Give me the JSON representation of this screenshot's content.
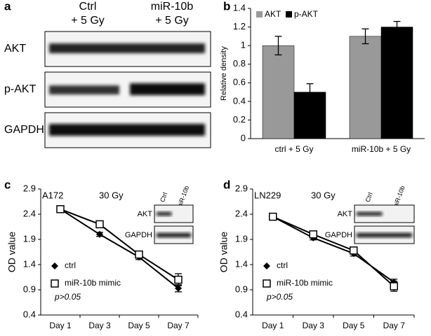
{
  "panels": [
    "a",
    "b",
    "c",
    "d"
  ],
  "blot": {
    "columns": [
      [
        "Ctrl",
        "+ 5 Gy"
      ],
      [
        "miR-10b",
        "+ 5 Gy"
      ]
    ],
    "rows": [
      "AKT",
      "p-AKT",
      "GAPDH"
    ]
  },
  "chart_data": [
    {
      "type": "bar",
      "y_label": "Relative density",
      "categories": [
        "ctrl + 5 Gy",
        "miR-10b + 5 Gy"
      ],
      "series": [
        {
          "name": "AKT",
          "color": "#999999",
          "values": [
            1,
            1.1
          ],
          "errors": [
            0.1,
            0.08
          ]
        },
        {
          "name": "p-AKT",
          "color": "#000000",
          "values": [
            0.5,
            1.2
          ],
          "errors": [
            0.09,
            0.06
          ]
        }
      ],
      "ylim": [
        0,
        1.4
      ],
      "yticks": [
        0,
        0.2,
        0.4,
        0.6,
        0.8,
        1,
        1.2,
        1.4
      ],
      "legend": "upper left"
    },
    {
      "type": "line",
      "y_label": "OD value",
      "annotations": [
        "A172",
        "30 Gy",
        "p>0.05"
      ],
      "categories": [
        "Day 1",
        "Day 3",
        "Day 5",
        "Day 7"
      ],
      "series": [
        {
          "name": "ctrl",
          "color": "#000000",
          "marker": "diamond",
          "values": [
            2.5,
            2.0,
            1.55,
            0.93
          ],
          "errors": [
            0.05,
            0.04,
            0.05,
            0.07
          ]
        },
        {
          "name": "miR-10b mimic",
          "color": "#000000",
          "marker": "square",
          "values": [
            2.5,
            2.2,
            1.6,
            1.1
          ],
          "errors": [
            0.05,
            0.04,
            0.05,
            0.12
          ]
        }
      ],
      "ylim": [
        0.4,
        2.9
      ],
      "yticks": [
        0.4,
        0.9,
        1.4,
        1.9,
        2.4,
        2.9
      ],
      "inset_rows": [
        "AKT",
        "GAPDH"
      ],
      "inset_columns": [
        "Ctrl",
        "miR-10b"
      ]
    },
    {
      "type": "line",
      "y_label": "OD value",
      "annotations": [
        "LN229",
        "30 Gy",
        "p>0.05"
      ],
      "categories": [
        "Day 1",
        "Day 3",
        "Day 5",
        "Day 7"
      ],
      "series": [
        {
          "name": "ctrl",
          "color": "#000000",
          "marker": "diamond",
          "values": [
            2.35,
            1.93,
            1.62,
            1.05
          ],
          "errors": [
            0.04,
            0.04,
            0.05,
            0.06
          ]
        },
        {
          "name": "miR-10b mimic",
          "color": "#000000",
          "marker": "square",
          "values": [
            2.35,
            2.0,
            1.68,
            0.97
          ],
          "errors": [
            0.04,
            0.04,
            0.05,
            0.1
          ]
        }
      ],
      "ylim": [
        0.4,
        2.9
      ],
      "yticks": [
        0.4,
        0.9,
        1.4,
        1.9,
        2.4,
        2.9
      ],
      "inset_rows": [
        "AKT",
        "GAPDH"
      ],
      "inset_columns": [
        "Ctrl",
        "miR-10b"
      ]
    }
  ]
}
